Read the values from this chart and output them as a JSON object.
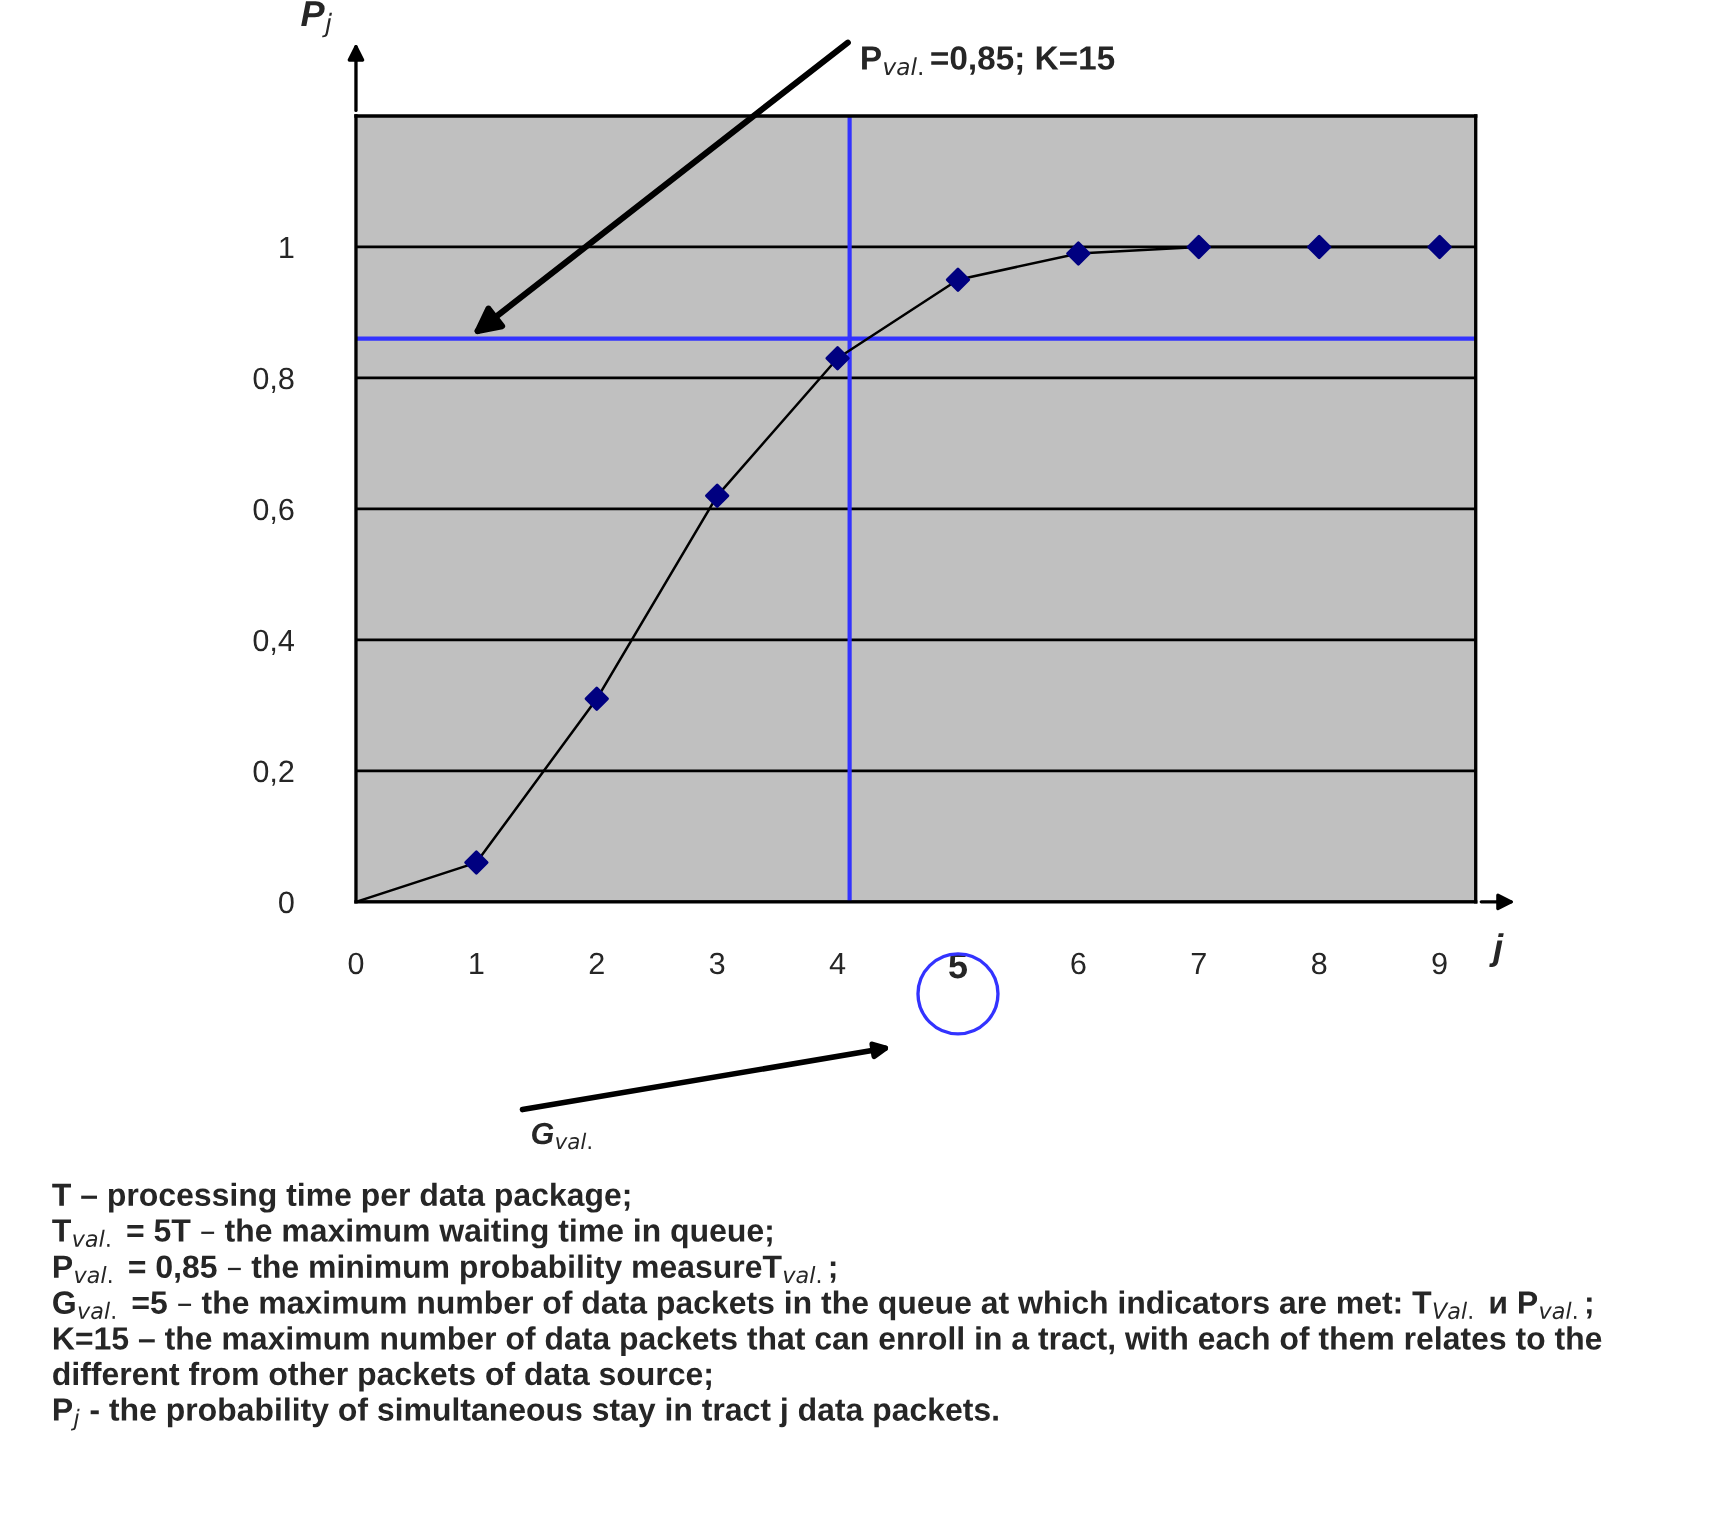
{
  "chart_data": {
    "type": "line",
    "x": [
      0,
      1,
      2,
      3,
      4,
      5,
      6,
      7,
      8,
      9
    ],
    "series": [
      {
        "color": "#000080",
        "values": [
          0,
          0.06,
          0.31,
          0.62,
          0.83,
          0.95,
          0.99,
          1,
          1,
          1
        ]
      }
    ],
    "xlabel": "j",
    "ylabel": "P$_{j}$",
    "xlim": [
      0,
      9.3
    ],
    "xticks": [
      0,
      1,
      2,
      3,
      4,
      5,
      6,
      7,
      8,
      9
    ],
    "ylim": [
      0,
      1.2
    ],
    "yticks": [
      0,
      {
        "value": 0.2,
        "label": "0,2"
      },
      {
        "value": 0.4,
        "label": "0,4"
      },
      {
        "value": 0.6,
        "label": "0,6"
      },
      {
        "value": 0.8,
        "label": "0,8"
      },
      1
    ],
    "grid": "y",
    "marker": "diamond",
    "line_style": "solid",
    "ref_lines": [
      {
        "axis": "y",
        "value": 0.86,
        "color": "#3333ff"
      },
      {
        "axis": "x",
        "value": 4.1,
        "color": "#3333ff"
      }
    ],
    "annotations": [
      "P$_{val.}$=0,85; K=15",
      "G$_{val.}$",
      "T – processing time per data package;",
      "T$_{val.}$ = 5T – the maximum waiting time in queue;",
      "P$_{val.}$ = 0,85 – the minimum probability measureT$_{val.}$;",
      "G$_{val.}$ =5 – the maximum number of data packets in the queue at which indicators are met: T$_{Val.}$ и P$_{val.}$;",
      "K=15 – the maximum number of data packets that can enroll in a tract, with each of them relates to the different from other packets of data source;",
      "P$_{j}$ - the probability of simultaneous stay in tract j data packets."
    ]
  }
}
